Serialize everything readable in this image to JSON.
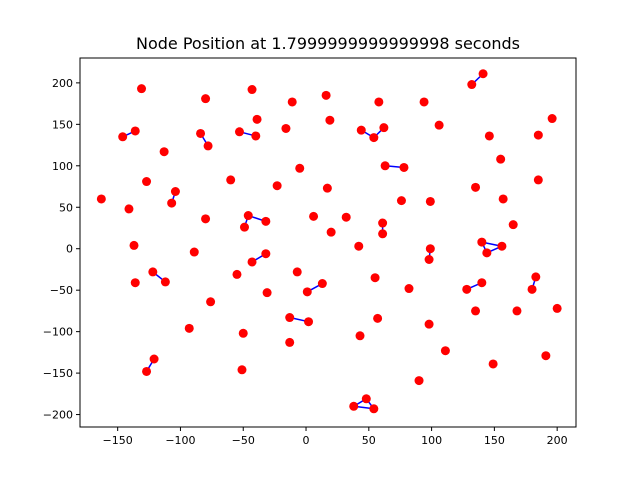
{
  "chart_data": {
    "type": "scatter",
    "title": "Node Position at 1.7999999999999998 seconds",
    "xlabel": "",
    "ylabel": "",
    "xlim": [
      -180,
      215
    ],
    "ylim": [
      -215,
      230
    ],
    "x_ticks": [
      -150,
      -100,
      -50,
      0,
      50,
      100,
      150,
      200
    ],
    "y_ticks": [
      -200,
      -150,
      -100,
      -50,
      0,
      50,
      100,
      150,
      200
    ],
    "x_tick_labels": [
      "−150",
      "−100",
      "−50",
      "0",
      "50",
      "100",
      "150",
      "200"
    ],
    "y_tick_labels": [
      "−200",
      "−150",
      "−100",
      "−50",
      "0",
      "50",
      "100",
      "150",
      "200"
    ],
    "grid": false,
    "node_color": "#ff0000",
    "edge_color": "#0000ff",
    "nodes": [
      {
        "x": -163,
        "y": 60
      },
      {
        "x": -146,
        "y": 135
      },
      {
        "x": -136,
        "y": 142
      },
      {
        "x": -131,
        "y": 193
      },
      {
        "x": -141,
        "y": 48
      },
      {
        "x": -127,
        "y": 81
      },
      {
        "x": -137,
        "y": 4
      },
      {
        "x": -136,
        "y": -41
      },
      {
        "x": -122,
        "y": -28
      },
      {
        "x": -112,
        "y": -40
      },
      {
        "x": -113,
        "y": 117
      },
      {
        "x": -107,
        "y": 55
      },
      {
        "x": -104,
        "y": 69
      },
      {
        "x": -89,
        "y": -4
      },
      {
        "x": -93,
        "y": -96
      },
      {
        "x": -80,
        "y": 181
      },
      {
        "x": -84,
        "y": 139
      },
      {
        "x": -78,
        "y": 124
      },
      {
        "x": -80,
        "y": 36
      },
      {
        "x": -76,
        "y": -64
      },
      {
        "x": -60,
        "y": 83
      },
      {
        "x": -53,
        "y": 141
      },
      {
        "x": -40,
        "y": 136
      },
      {
        "x": -43,
        "y": 192
      },
      {
        "x": -39,
        "y": 156
      },
      {
        "x": -46,
        "y": 40
      },
      {
        "x": -49,
        "y": 26
      },
      {
        "x": -32,
        "y": 33
      },
      {
        "x": -43,
        "y": -16
      },
      {
        "x": -32,
        "y": -6
      },
      {
        "x": -55,
        "y": -31
      },
      {
        "x": -50,
        "y": -102
      },
      {
        "x": -51,
        "y": -146
      },
      {
        "x": -31,
        "y": -53
      },
      {
        "x": -23,
        "y": 76
      },
      {
        "x": -16,
        "y": 145
      },
      {
        "x": -11,
        "y": 177
      },
      {
        "x": -5,
        "y": 97
      },
      {
        "x": -7,
        "y": -28
      },
      {
        "x": 1,
        "y": -52
      },
      {
        "x": 13,
        "y": -42
      },
      {
        "x": -13,
        "y": -83
      },
      {
        "x": 2,
        "y": -88
      },
      {
        "x": -13,
        "y": -113
      },
      {
        "x": 6,
        "y": 39
      },
      {
        "x": 16,
        "y": 185
      },
      {
        "x": 19,
        "y": 155
      },
      {
        "x": 17,
        "y": 73
      },
      {
        "x": 20,
        "y": 20
      },
      {
        "x": 32,
        "y": 38
      },
      {
        "x": 42,
        "y": 3
      },
      {
        "x": 43,
        "y": -105
      },
      {
        "x": 44,
        "y": 143
      },
      {
        "x": 54,
        "y": 134
      },
      {
        "x": 62,
        "y": 146
      },
      {
        "x": 58,
        "y": 177
      },
      {
        "x": 63,
        "y": 100
      },
      {
        "x": 78,
        "y": 98
      },
      {
        "x": 61,
        "y": 31
      },
      {
        "x": 61,
        "y": 18
      },
      {
        "x": 55,
        "y": -35
      },
      {
        "x": 57,
        "y": -84
      },
      {
        "x": 76,
        "y": 58
      },
      {
        "x": 82,
        "y": -48
      },
      {
        "x": 38,
        "y": -190
      },
      {
        "x": 48,
        "y": -181
      },
      {
        "x": 54,
        "y": -193
      },
      {
        "x": 90,
        "y": -159
      },
      {
        "x": 94,
        "y": 177
      },
      {
        "x": 106,
        "y": 149
      },
      {
        "x": 99,
        "y": 57
      },
      {
        "x": 99,
        "y": 0
      },
      {
        "x": 98,
        "y": -13
      },
      {
        "x": 98,
        "y": -91
      },
      {
        "x": 111,
        "y": -123
      },
      {
        "x": 132,
        "y": 198
      },
      {
        "x": 141,
        "y": 211
      },
      {
        "x": 146,
        "y": 136
      },
      {
        "x": 155,
        "y": 108
      },
      {
        "x": 135,
        "y": 74
      },
      {
        "x": 157,
        "y": 60
      },
      {
        "x": 140,
        "y": 8
      },
      {
        "x": 156,
        "y": 3
      },
      {
        "x": 144,
        "y": -5
      },
      {
        "x": 128,
        "y": -49
      },
      {
        "x": 140,
        "y": -41
      },
      {
        "x": 135,
        "y": -75
      },
      {
        "x": 149,
        "y": -139
      },
      {
        "x": 165,
        "y": 29
      },
      {
        "x": 168,
        "y": -75
      },
      {
        "x": 185,
        "y": 137
      },
      {
        "x": 185,
        "y": 83
      },
      {
        "x": 196,
        "y": 157
      },
      {
        "x": 183,
        "y": -34
      },
      {
        "x": 180,
        "y": -49
      },
      {
        "x": 200,
        "y": -72
      },
      {
        "x": 191,
        "y": -129
      },
      {
        "x": -121,
        "y": -133
      },
      {
        "x": -127,
        "y": -148
      }
    ],
    "edges": [
      [
        1,
        2
      ],
      [
        8,
        9
      ],
      [
        11,
        12
      ],
      [
        16,
        17
      ],
      [
        21,
        22
      ],
      [
        25,
        26
      ],
      [
        25,
        27
      ],
      [
        28,
        29
      ],
      [
        39,
        40
      ],
      [
        41,
        42
      ],
      [
        52,
        53
      ],
      [
        53,
        54
      ],
      [
        56,
        57
      ],
      [
        58,
        59
      ],
      [
        64,
        65
      ],
      [
        65,
        66
      ],
      [
        64,
        66
      ],
      [
        71,
        72
      ],
      [
        75,
        76
      ],
      [
        81,
        82
      ],
      [
        81,
        83
      ],
      [
        83,
        82
      ],
      [
        84,
        85
      ],
      [
        93,
        94
      ],
      [
        97,
        98
      ]
    ]
  }
}
